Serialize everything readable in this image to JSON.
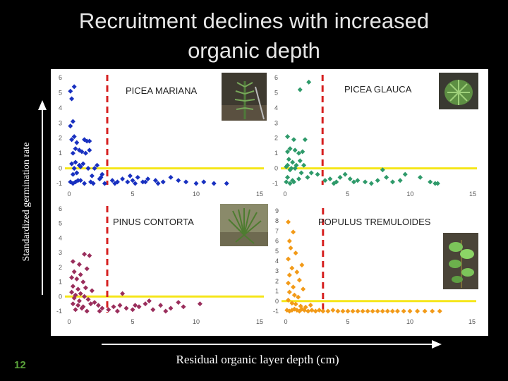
{
  "slide": {
    "title_line1": "Recruitment declines with increased",
    "title_line2": "organic depth",
    "ylabel": "Standardized germination rate",
    "xlabel": "Residual organic layer depth (cm)",
    "slide_number": "12"
  },
  "colors": {
    "background": "#000000",
    "panel": "#ffffff",
    "zero_line": "#f5e61a",
    "threshold_line": "#d62020",
    "arrow": "#ffffff",
    "slide_number": "#5aa33a"
  },
  "chart_data": [
    {
      "type": "scatter",
      "title": "PICEA MARIANA",
      "color": "#1830c0",
      "marker": "diamond",
      "xlim": [
        0,
        15
      ],
      "ylim": [
        -1,
        6
      ],
      "xticks": [
        "0",
        "5",
        "10",
        "15"
      ],
      "yticks": [
        "-1",
        "0",
        "1",
        "2",
        "3",
        "4",
        "5",
        "6"
      ],
      "zero_line": 0,
      "threshold_x": 3,
      "x": [
        0.1,
        0.2,
        0.3,
        0.1,
        0.4,
        0.2,
        0.6,
        1.2,
        1.4,
        0.8,
        0.5,
        0.3,
        1.0,
        1.3,
        1.6,
        0.2,
        0.5,
        0.8,
        1.1,
        0.4,
        0.9,
        1.5,
        2.0,
        2.2,
        0.3,
        0.6,
        1.8,
        0.7,
        2.4,
        0.1,
        0.3,
        0.5,
        0.9,
        1.2,
        1.7,
        2.5,
        3.4,
        3.8,
        4.2,
        4.6,
        5.0,
        5.4,
        5.8,
        6.2,
        6.8,
        7.4,
        8.0,
        8.6,
        1.9,
        2.8,
        3.6,
        4.8,
        5.2,
        6.0,
        7.0,
        9.2,
        10.0,
        10.6,
        11.4,
        12.4,
        0.4,
        1.6,
        2.6
      ],
      "y": [
        5.1,
        4.6,
        3.1,
        2.8,
        2.1,
        1.9,
        1.7,
        1.9,
        1.8,
        1.2,
        1.3,
        1.0,
        1.1,
        1.0,
        1.2,
        0.3,
        0.4,
        0.2,
        0.3,
        0.0,
        0.1,
        0.0,
        0.0,
        0.2,
        -0.4,
        -0.3,
        -0.5,
        -0.8,
        -0.7,
        -0.9,
        -1.0,
        -0.9,
        -0.8,
        -1.0,
        -0.9,
        -0.6,
        -0.8,
        -0.9,
        -0.7,
        -0.9,
        -0.8,
        -0.6,
        -0.9,
        -0.7,
        -0.8,
        -0.9,
        -0.6,
        -0.8,
        -1.0,
        -1.0,
        -1.0,
        -0.5,
        -1.0,
        -0.9,
        -1.0,
        -0.9,
        -1.0,
        -0.9,
        -1.0,
        -1.0,
        5.4,
        1.8,
        -0.4
      ]
    },
    {
      "type": "scatter",
      "title": "PICEA GLAUCA",
      "color": "#2e9a6a",
      "marker": "diamond",
      "xlim": [
        0,
        15
      ],
      "ylim": [
        -1,
        6
      ],
      "xticks": [
        "0",
        "5",
        "10",
        "15"
      ],
      "yticks": [
        "-1",
        "0",
        "1",
        "2",
        "3",
        "4",
        "5",
        "6"
      ],
      "zero_line": 0,
      "threshold_x": 3,
      "x": [
        1.2,
        1.9,
        0.2,
        0.7,
        1.6,
        0.4,
        0.2,
        1.1,
        0.8,
        1.4,
        0.3,
        0.6,
        1.2,
        1.5,
        0.2,
        0.5,
        0.9,
        0.1,
        0.4,
        0.8,
        1.3,
        0.2,
        0.6,
        1.1,
        1.8,
        2.1,
        0.1,
        0.4,
        0.7,
        3.2,
        3.6,
        4.1,
        4.4,
        4.8,
        5.2,
        5.8,
        6.4,
        7.4,
        8.1,
        8.6,
        9.2,
        10.8,
        11.6,
        12.2,
        2.6,
        3.9,
        5.5,
        6.9,
        7.8,
        9.6,
        12.0
      ],
      "y": [
        5.2,
        5.7,
        2.1,
        1.9,
        1.9,
        1.3,
        1.1,
        1.0,
        1.2,
        1.1,
        0.6,
        0.4,
        0.5,
        0.2,
        0.2,
        0.0,
        0.2,
        0.1,
        -0.1,
        0.0,
        -0.3,
        -0.6,
        -0.8,
        -0.7,
        -0.6,
        -0.3,
        -0.9,
        -1.0,
        -0.9,
        -0.8,
        -0.7,
        -0.9,
        -0.6,
        -0.4,
        -0.7,
        -0.8,
        -0.9,
        -0.8,
        -0.6,
        -0.9,
        -0.8,
        -0.6,
        -0.9,
        -1.0,
        -0.4,
        -1.0,
        -0.9,
        -1.0,
        -0.1,
        -0.4,
        -1.0
      ]
    },
    {
      "type": "scatter",
      "title": "PINUS CONTORTA",
      "color": "#9a2e5c",
      "marker": "diamond",
      "xlim": [
        0,
        15
      ],
      "ylim": [
        -1,
        6
      ],
      "xticks": [
        "0",
        "5",
        "10",
        "15"
      ],
      "yticks": [
        "-1",
        "0",
        "1",
        "2",
        "3",
        "4",
        "5",
        "6"
      ],
      "zero_line": 0,
      "threshold_x": 3,
      "x": [
        1.2,
        1.6,
        0.3,
        0.8,
        1.4,
        0.4,
        0.9,
        0.2,
        0.6,
        1.1,
        0.3,
        0.7,
        1.3,
        1.8,
        0.2,
        0.5,
        0.9,
        1.2,
        0.4,
        0.8,
        1.5,
        2.0,
        0.3,
        0.7,
        1.1,
        1.7,
        2.3,
        0.5,
        1.0,
        1.4,
        2.6,
        3.1,
        3.5,
        4.0,
        4.5,
        5.0,
        5.5,
        6.0,
        6.6,
        7.2,
        8.0,
        9.0,
        10.3,
        4.2,
        6.3,
        8.6,
        2.4,
        3.8,
        5.2,
        7.6
      ],
      "y": [
        2.9,
        2.8,
        2.4,
        2.2,
        1.9,
        1.7,
        1.5,
        1.3,
        1.2,
        1.0,
        0.7,
        0.5,
        0.6,
        0.4,
        0.3,
        0.1,
        0.2,
        0.0,
        -0.1,
        -0.3,
        -0.2,
        -0.4,
        -0.5,
        -0.6,
        -0.7,
        -0.5,
        -0.6,
        -0.9,
        -0.8,
        -1.0,
        -0.8,
        -0.9,
        -0.7,
        -0.6,
        -0.8,
        -0.9,
        -0.7,
        -0.5,
        -0.9,
        -0.6,
        -0.8,
        -0.7,
        -0.5,
        0.2,
        -0.3,
        -0.4,
        -1.0,
        -1.0,
        -0.6,
        -1.0
      ]
    },
    {
      "type": "scatter",
      "title": "POPULUS TREMULOIDES",
      "color": "#f29a18",
      "marker": "diamond",
      "xlim": [
        0,
        15
      ],
      "ylim": [
        -1,
        9
      ],
      "xticks": [
        "0",
        "5",
        "10",
        "15"
      ],
      "yticks": [
        "-1",
        "0",
        "1",
        "2",
        "3",
        "4",
        "5",
        "6",
        "7",
        "8",
        "9"
      ],
      "zero_line": 0,
      "threshold_x": 3,
      "x": [
        0.2,
        0.6,
        0.3,
        0.4,
        0.8,
        0.2,
        1.3,
        0.5,
        0.9,
        0.3,
        1.1,
        0.2,
        0.6,
        1.4,
        0.3,
        0.7,
        1.0,
        0.2,
        0.5,
        0.8,
        1.2,
        1.6,
        2.0,
        0.1,
        0.3,
        0.5,
        0.7,
        0.9,
        1.1,
        1.3,
        1.5,
        1.8,
        2.1,
        2.4,
        2.7,
        3.0,
        3.4,
        3.8,
        4.2,
        4.6,
        5.0,
        5.4,
        5.8,
        6.2,
        6.6,
        7.0,
        7.4,
        7.8,
        8.2,
        8.6,
        9.0,
        9.5,
        10.0,
        10.6,
        11.2,
        11.8,
        12.4
      ],
      "y": [
        7.9,
        6.9,
        6.0,
        5.3,
        4.8,
        4.2,
        3.6,
        3.3,
        2.9,
        2.6,
        2.1,
        1.8,
        1.4,
        1.2,
        0.9,
        0.6,
        0.4,
        0.1,
        -0.2,
        -0.3,
        -0.5,
        -0.6,
        -0.4,
        -0.9,
        -1.0,
        -0.9,
        -0.8,
        -0.9,
        -1.0,
        -0.8,
        -0.9,
        -1.0,
        -0.9,
        -1.0,
        -0.9,
        -1.0,
        -1.0,
        -0.9,
        -1.0,
        -1.0,
        -1.0,
        -1.0,
        -1.0,
        -1.0,
        -1.0,
        -1.0,
        -1.0,
        -1.0,
        -1.0,
        -1.0,
        -1.0,
        -1.0,
        -1.0,
        -1.0,
        -1.0,
        -1.0,
        -1.0
      ]
    }
  ]
}
